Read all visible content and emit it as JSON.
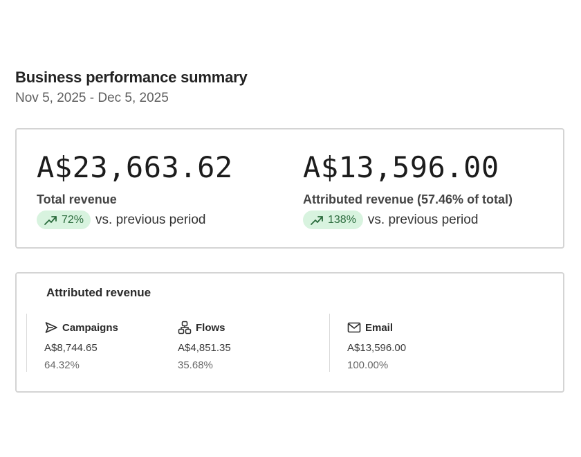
{
  "header": {
    "title": "Business performance summary",
    "date_range": "Nov 5, 2025 - Dec 5, 2025"
  },
  "summary": {
    "total_revenue": {
      "value": "A$23,663.62",
      "label": "Total revenue",
      "change": "72%",
      "comparison": "vs. previous period",
      "trend_icon": "trending-up-icon"
    },
    "attributed_revenue": {
      "value": "A$13,596.00",
      "label": "Attributed revenue (57.46% of total)",
      "change": "138%",
      "comparison": "vs. previous period",
      "trend_icon": "trending-up-icon"
    }
  },
  "attributed": {
    "title": "Attributed revenue",
    "channels": [
      {
        "name": "Campaigns",
        "icon": "send-icon",
        "amount": "A$8,744.65",
        "percent": "64.32%"
      },
      {
        "name": "Flows",
        "icon": "flow-icon",
        "amount": "A$4,851.35",
        "percent": "35.68%"
      },
      {
        "name": "Email",
        "icon": "mail-icon",
        "amount": "A$13,596.00",
        "percent": "100.00%"
      }
    ]
  },
  "colors": {
    "positive_pill_bg": "#d8f3df",
    "positive_pill_text": "#2a6b3c",
    "card_border": "#d4d4d4"
  }
}
